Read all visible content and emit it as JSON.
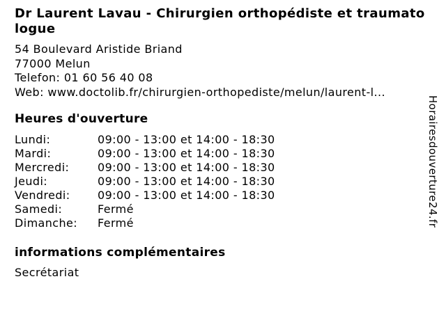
{
  "colors": {
    "background": "#ffffff",
    "text": "#000000"
  },
  "header": {
    "title": "Dr Laurent Lavau - Chirurgien orthopédiste et traumatologue"
  },
  "contact": {
    "address_line1": "54 Boulevard Aristide Briand",
    "address_line2": "77000 Melun",
    "phone_label": "Telefon:",
    "phone_value": "01 60 56 40 08",
    "web_label": "Web:",
    "web_value": "www.doctolib.fr/chirurgien-orthopediste/melun/laurent-l..."
  },
  "hours": {
    "heading": "Heures d'ouverture",
    "rows": [
      {
        "day": "Lundi:",
        "time": "09:00 - 13:00 et 14:00 - 18:30"
      },
      {
        "day": "Mardi:",
        "time": "09:00 - 13:00 et 14:00 - 18:30"
      },
      {
        "day": "Mercredi:",
        "time": "09:00 - 13:00 et 14:00 - 18:30"
      },
      {
        "day": "Jeudi:",
        "time": "09:00 - 13:00 et 14:00 - 18:30"
      },
      {
        "day": "Vendredi:",
        "time": "09:00 - 13:00 et 14:00 - 18:30"
      },
      {
        "day": "Samedi:",
        "time": "Fermé"
      },
      {
        "day": "Dimanche:",
        "time": "Fermé"
      }
    ]
  },
  "extra_info": {
    "heading": "informations complémentaires",
    "text": "Secrétariat"
  },
  "watermark": {
    "text": "Horairesdouverture24.fr"
  }
}
